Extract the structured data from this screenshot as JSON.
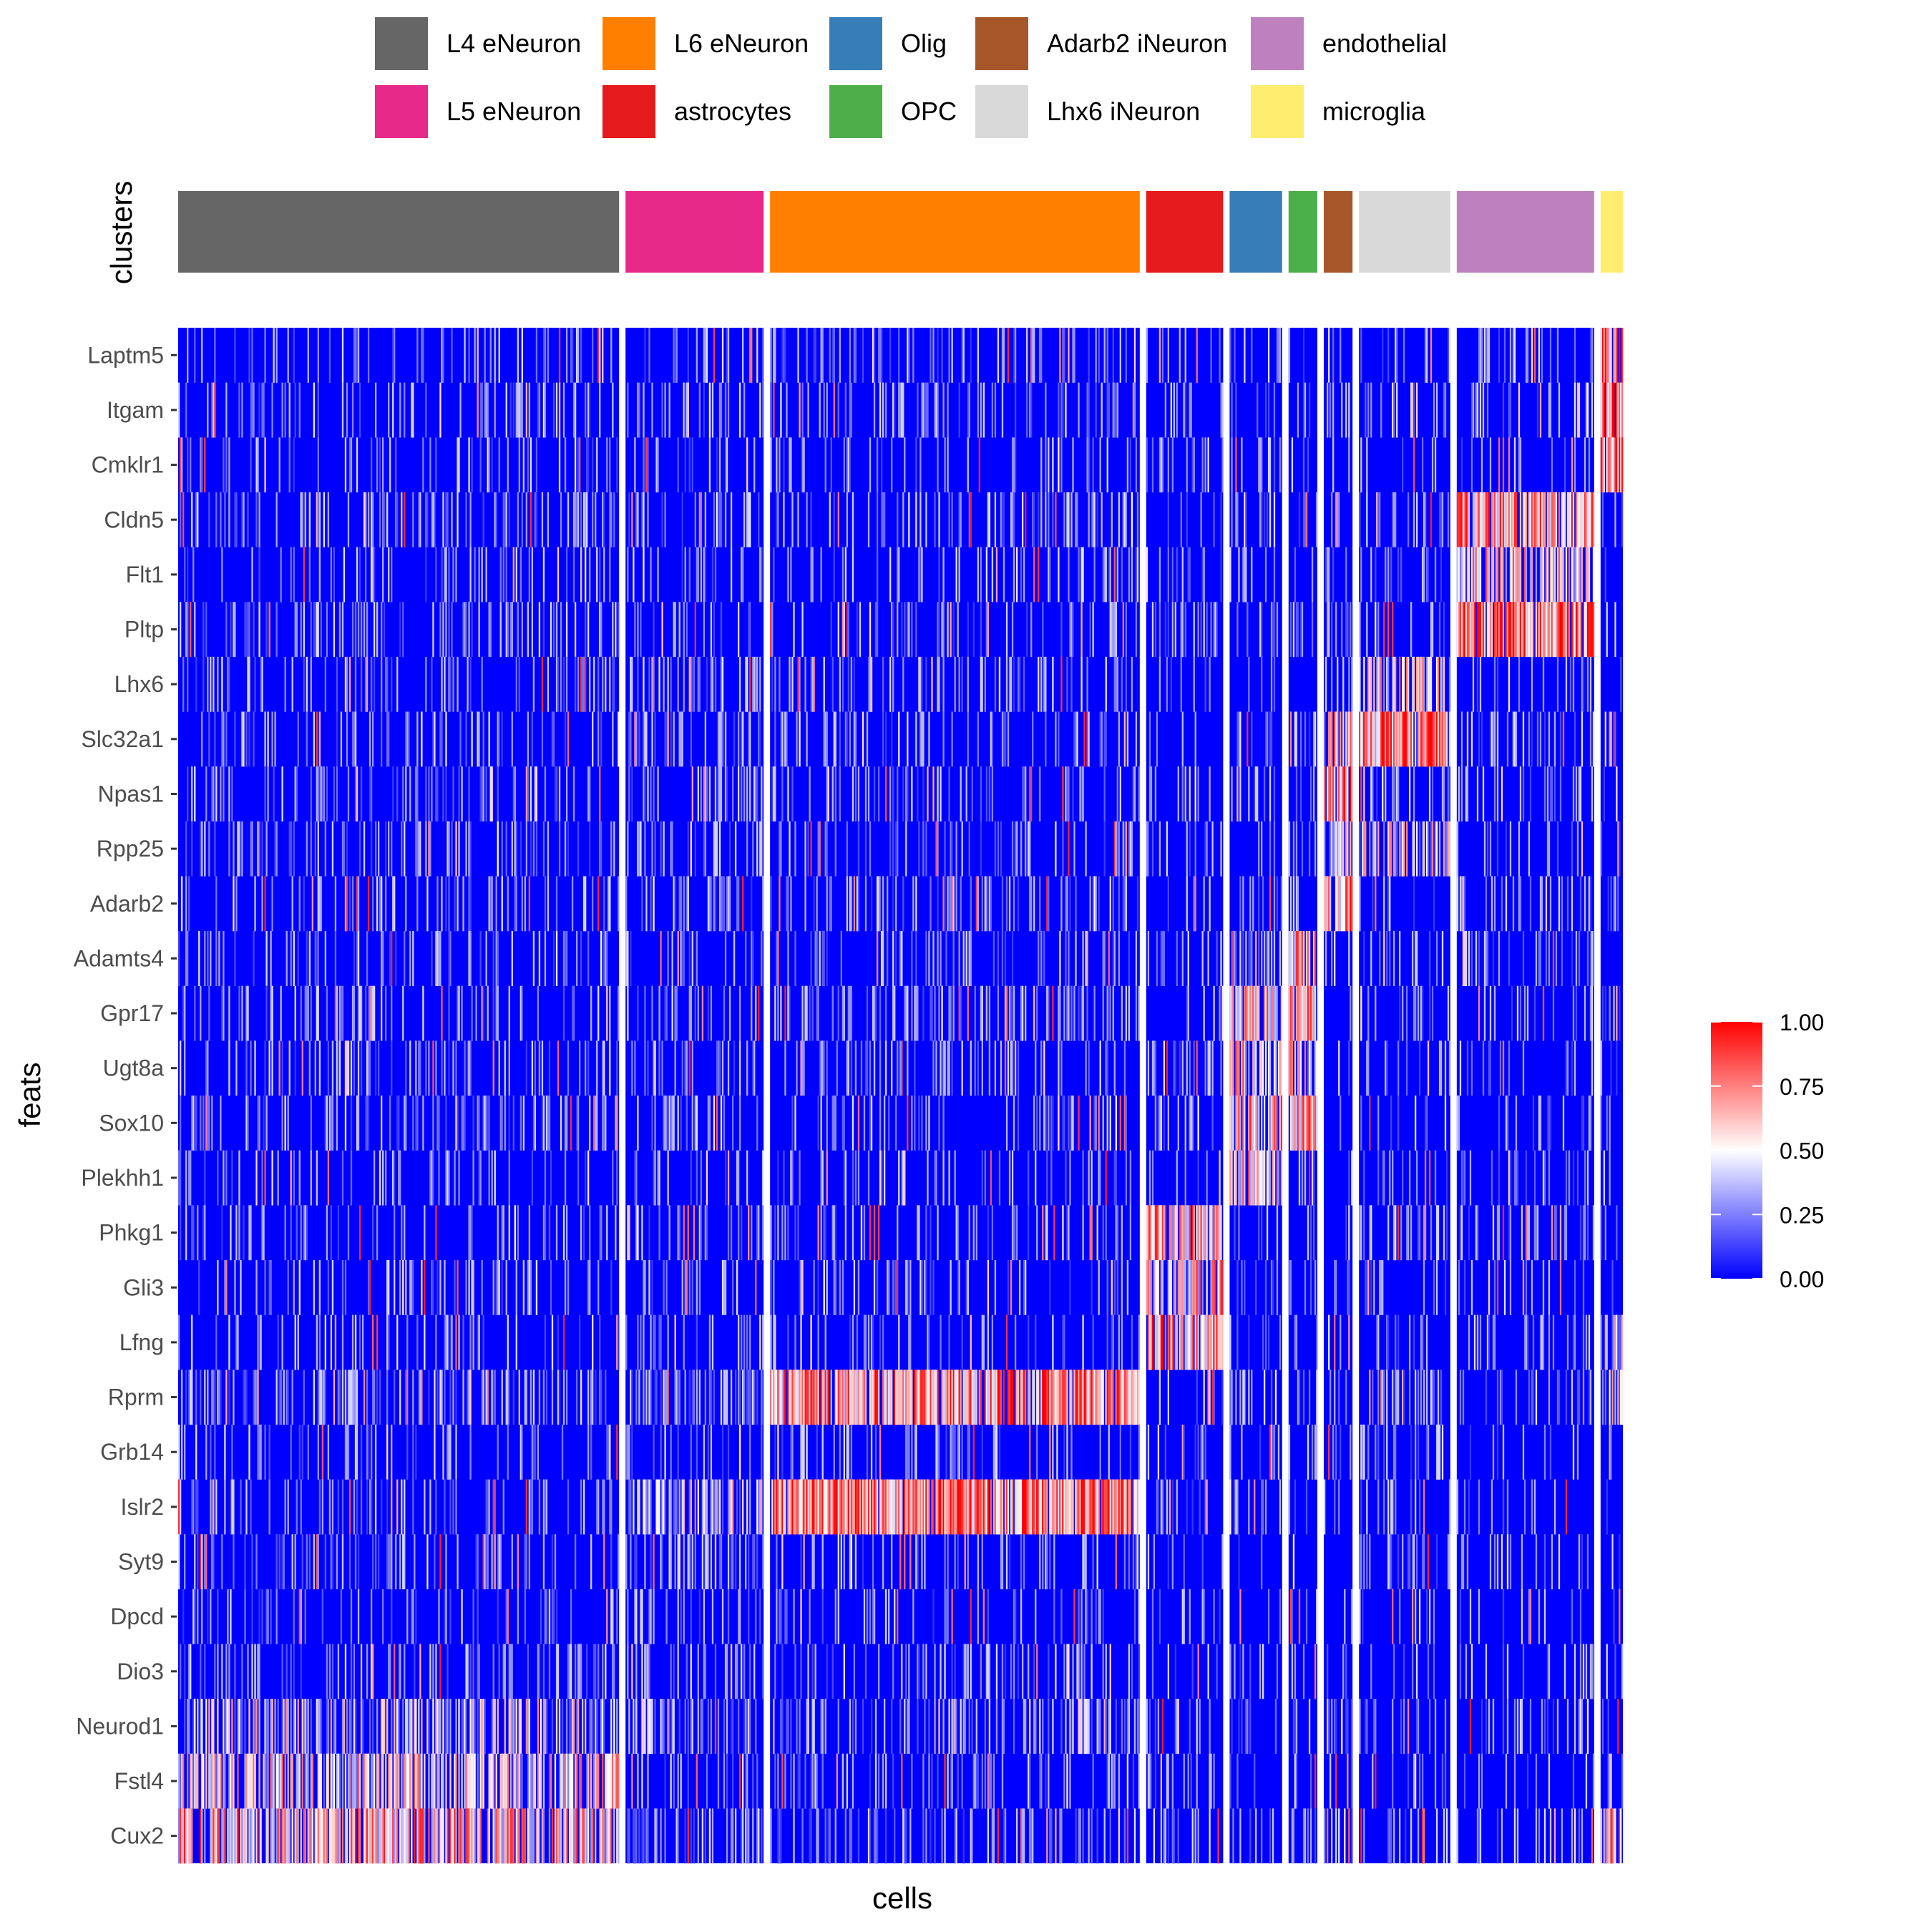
{
  "chart_data": {
    "type": "heatmap",
    "title": "",
    "xlabel": "cells",
    "ylabel": "feats",
    "annotation_label": "clusters",
    "clusters": [
      {
        "name": "L4 eNeuron",
        "color": "#666666",
        "cells": 613
      },
      {
        "name": "L5 eNeuron",
        "color": "#E7298A",
        "cells": 192
      },
      {
        "name": "L6 eNeuron",
        "color": "#FF7F00",
        "cells": 514
      },
      {
        "name": "astrocytes",
        "color": "#E41A1C",
        "cells": 107
      },
      {
        "name": "Olig",
        "color": "#377EB8",
        "cells": 73
      },
      {
        "name": "OPC",
        "color": "#4DAF4A",
        "cells": 40
      },
      {
        "name": "Adarb2 iNeuron",
        "color": "#A65628",
        "cells": 40
      },
      {
        "name": "Lhx6 iNeuron",
        "color": "#D9D9D9",
        "cells": 127
      },
      {
        "name": "endothelial",
        "color": "#BF80BF",
        "cells": 191
      },
      {
        "name": "microglia",
        "color": "#FFED6F",
        "cells": 31
      }
    ],
    "legend_order": [
      "L4 eNeuron",
      "L5 eNeuron",
      "L6 eNeuron",
      "astrocytes",
      "Olig",
      "OPC",
      "Adarb2 iNeuron",
      "Lhx6 iNeuron",
      "endothelial",
      "microglia"
    ],
    "features": [
      "Laptm5",
      "Itgam",
      "Cmklr1",
      "Cldn5",
      "Flt1",
      "Pltp",
      "Lhx6",
      "Slc32a1",
      "Npas1",
      "Rpp25",
      "Adarb2",
      "Adamts4",
      "Gpr17",
      "Ugt8a",
      "Sox10",
      "Plekhh1",
      "Phkg1",
      "Gli3",
      "Lfng",
      "Rprm",
      "Grb14",
      "Islr2",
      "Syt9",
      "Dpcd",
      "Dio3",
      "Neurod1",
      "Fstl4",
      "Cux2"
    ],
    "mean_expression": [
      [
        0.08,
        0.1,
        0.08,
        0.05,
        0.05,
        0.05,
        0.05,
        0.08,
        0.06,
        0.75
      ],
      [
        0.08,
        0.12,
        0.12,
        0.05,
        0.05,
        0.05,
        0.1,
        0.1,
        0.1,
        0.8
      ],
      [
        0.05,
        0.05,
        0.08,
        0.05,
        0.05,
        0.05,
        0.05,
        0.05,
        0.05,
        0.75
      ],
      [
        0.15,
        0.15,
        0.12,
        0.08,
        0.12,
        0.1,
        0.1,
        0.12,
        0.7,
        0.02
      ],
      [
        0.06,
        0.06,
        0.08,
        0.06,
        0.08,
        0.05,
        0.05,
        0.05,
        0.55,
        0.02
      ],
      [
        0.15,
        0.1,
        0.1,
        0.2,
        0.08,
        0.15,
        0.1,
        0.1,
        0.8,
        0.02
      ],
      [
        0.1,
        0.12,
        0.12,
        0.05,
        0.08,
        0.05,
        0.1,
        0.5,
        0.05,
        0.02
      ],
      [
        0.08,
        0.15,
        0.08,
        0.05,
        0.06,
        0.1,
        0.55,
        0.75,
        0.08,
        0.1
      ],
      [
        0.1,
        0.15,
        0.15,
        0.05,
        0.1,
        0.05,
        0.7,
        0.15,
        0.05,
        0.02
      ],
      [
        0.1,
        0.1,
        0.08,
        0.08,
        0.1,
        0.1,
        0.55,
        0.45,
        0.06,
        0.05
      ],
      [
        0.08,
        0.12,
        0.18,
        0.05,
        0.12,
        0.1,
        0.7,
        0.1,
        0.05,
        0.05
      ],
      [
        0.08,
        0.1,
        0.08,
        0.1,
        0.35,
        0.6,
        0.05,
        0.06,
        0.06,
        0.05
      ],
      [
        0.1,
        0.12,
        0.15,
        0.05,
        0.55,
        0.6,
        0.05,
        0.05,
        0.05,
        0.05
      ],
      [
        0.08,
        0.1,
        0.1,
        0.1,
        0.55,
        0.5,
        0.05,
        0.05,
        0.05,
        0.05
      ],
      [
        0.12,
        0.1,
        0.1,
        0.08,
        0.6,
        0.7,
        0.05,
        0.08,
        0.05,
        0.05
      ],
      [
        0.05,
        0.08,
        0.08,
        0.06,
        0.55,
        0.15,
        0.05,
        0.05,
        0.05,
        0.02
      ],
      [
        0.1,
        0.12,
        0.12,
        0.6,
        0.05,
        0.05,
        0.06,
        0.05,
        0.1,
        0.05
      ],
      [
        0.08,
        0.1,
        0.1,
        0.6,
        0.05,
        0.05,
        0.06,
        0.06,
        0.05,
        0.05
      ],
      [
        0.06,
        0.05,
        0.06,
        0.7,
        0.08,
        0.05,
        0.05,
        0.05,
        0.05,
        0.4
      ],
      [
        0.2,
        0.35,
        0.7,
        0.1,
        0.15,
        0.1,
        0.15,
        0.2,
        0.1,
        0.4
      ],
      [
        0.05,
        0.08,
        0.08,
        0.06,
        0.06,
        0.05,
        0.05,
        0.05,
        0.06,
        0.02
      ],
      [
        0.12,
        0.4,
        0.75,
        0.1,
        0.08,
        0.05,
        0.08,
        0.05,
        0.08,
        0.05
      ],
      [
        0.1,
        0.2,
        0.08,
        0.06,
        0.06,
        0.05,
        0.05,
        0.06,
        0.05,
        0.02
      ],
      [
        0.08,
        0.1,
        0.06,
        0.05,
        0.05,
        0.05,
        0.05,
        0.06,
        0.06,
        0.02
      ],
      [
        0.1,
        0.1,
        0.08,
        0.06,
        0.05,
        0.05,
        0.05,
        0.05,
        0.06,
        0.05
      ],
      [
        0.4,
        0.12,
        0.12,
        0.08,
        0.05,
        0.05,
        0.08,
        0.08,
        0.06,
        0.05
      ],
      [
        0.5,
        0.12,
        0.12,
        0.1,
        0.06,
        0.05,
        0.06,
        0.06,
        0.06,
        0.1
      ],
      [
        0.6,
        0.25,
        0.1,
        0.08,
        0.15,
        0.1,
        0.15,
        0.15,
        0.08,
        0.6
      ]
    ],
    "color_scale": {
      "min": 0.0,
      "mid": 0.5,
      "max": 1.0,
      "low_color": "#0000FF",
      "mid_color": "#FFFFFF",
      "high_color": "#FF0000"
    },
    "colorbar_ticks": [
      "1.00",
      "0.75",
      "0.50",
      "0.25",
      "0.00"
    ],
    "colorbar_tick_values": [
      1.0,
      0.75,
      0.5,
      0.25,
      0.0
    ],
    "value_range": [
      0,
      1
    ],
    "legend_position": "top",
    "colorbar_position": "right"
  }
}
